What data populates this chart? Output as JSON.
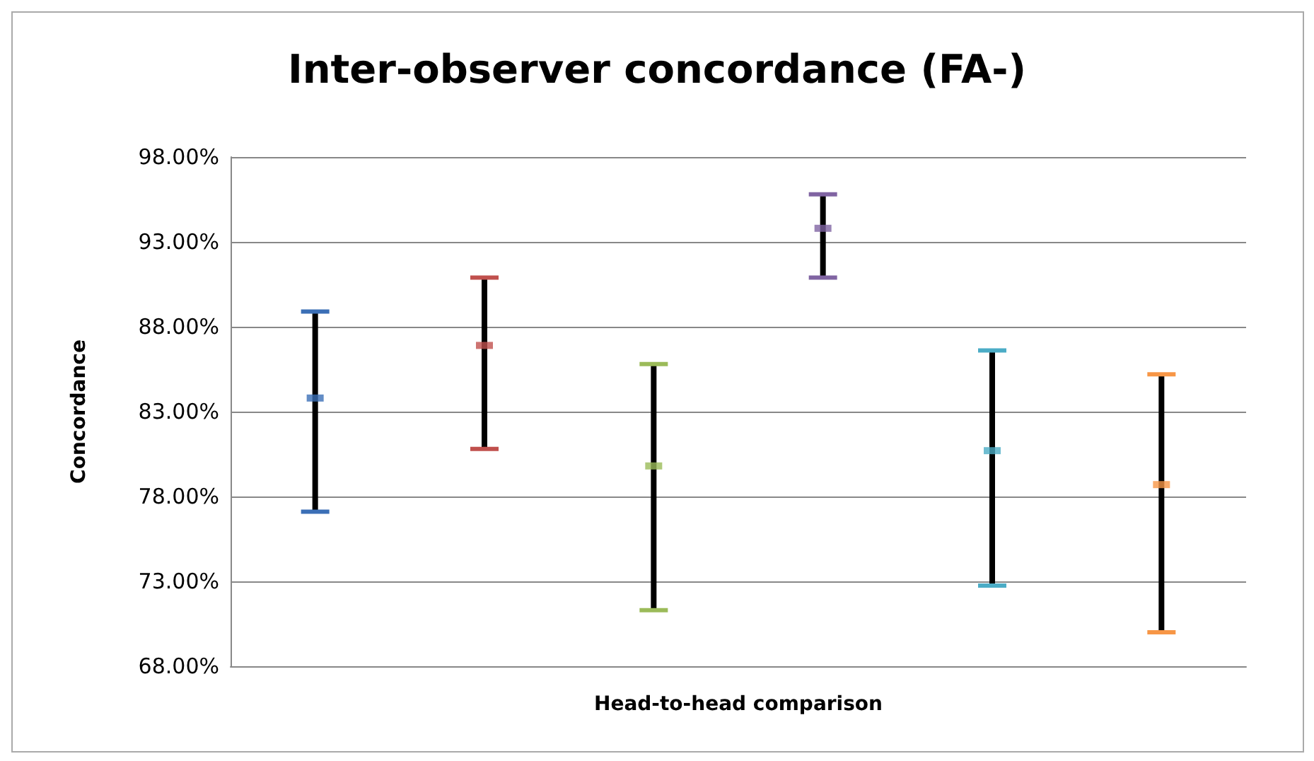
{
  "chart_data": {
    "type": "scatter",
    "title": "Inter-observer concordance (FA-)",
    "xlabel": "Head-to-head comparison",
    "ylabel": "Concordance",
    "categories": [
      null,
      null,
      null,
      null,
      null,
      null
    ],
    "values": [
      83.8,
      86.9,
      79.8,
      93.8,
      80.7,
      78.7
    ],
    "errors": [
      [
        77.1,
        88.9
      ],
      [
        80.8,
        90.9
      ],
      [
        71.3,
        85.8
      ],
      [
        90.9,
        95.8
      ],
      [
        72.75,
        86.6
      ],
      [
        70.0,
        85.2
      ]
    ],
    "colors": [
      "#3b6fb6",
      "#c0504d",
      "#9bbb59",
      "#8064a2",
      "#4bacc6",
      "#f79646"
    ],
    "ylim": [
      68,
      98
    ],
    "yticks": [
      {
        "value": 68,
        "label": "68.00%"
      },
      {
        "value": 73,
        "label": "73.00%"
      },
      {
        "value": 78,
        "label": "78.00%"
      },
      {
        "value": 83,
        "label": "83.00%"
      },
      {
        "value": 88,
        "label": "88.00%"
      },
      {
        "value": 93,
        "label": "93.00%"
      },
      {
        "value": 98,
        "label": "98.00%"
      }
    ],
    "grid": "y"
  }
}
